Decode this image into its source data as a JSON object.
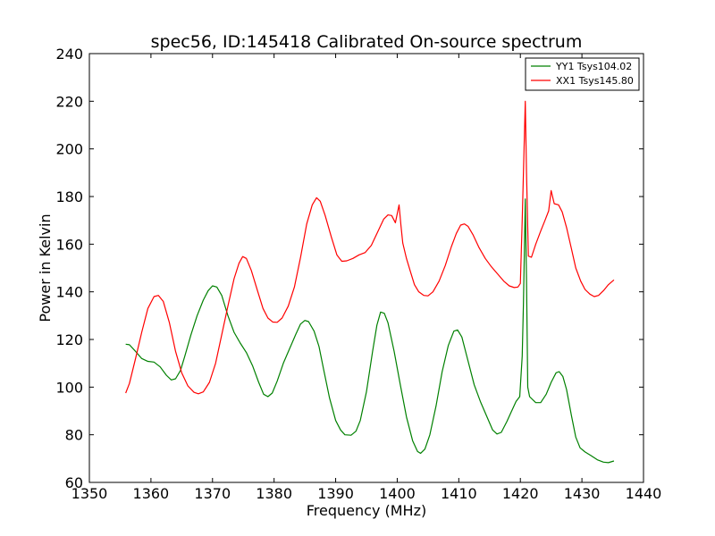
{
  "chart_data": {
    "type": "line",
    "title": "spec56, ID:145418 Calibrated On-source spectrum",
    "xlabel": "Frequency (MHz)",
    "ylabel": "Power in Kelvin",
    "xlim": [
      1350,
      1440
    ],
    "ylim": [
      60,
      240
    ],
    "x_ticks": [
      1350,
      1360,
      1370,
      1380,
      1390,
      1400,
      1410,
      1420,
      1430,
      1440
    ],
    "y_ticks": [
      60,
      80,
      100,
      120,
      140,
      160,
      180,
      200,
      220,
      240
    ],
    "grid": false,
    "legend_position": "top-right",
    "series": [
      {
        "name": "YY1 Tsys104.02",
        "color": "#008000",
        "points": [
          [
            1355.9,
            118
          ],
          [
            1356.5,
            117.8
          ],
          [
            1357.5,
            115
          ],
          [
            1358.5,
            112
          ],
          [
            1359.5,
            110.8
          ],
          [
            1360.5,
            110.5
          ],
          [
            1361.5,
            108.5
          ],
          [
            1362.5,
            105
          ],
          [
            1363.3,
            103
          ],
          [
            1364.0,
            103.5
          ],
          [
            1364.8,
            107
          ],
          [
            1365.5,
            113
          ],
          [
            1366.5,
            122
          ],
          [
            1367.5,
            130
          ],
          [
            1368.5,
            136.5
          ],
          [
            1369.3,
            140.5
          ],
          [
            1370.0,
            142.5
          ],
          [
            1370.7,
            142
          ],
          [
            1371.5,
            138.5
          ],
          [
            1372.5,
            130
          ],
          [
            1373.5,
            123
          ],
          [
            1374.5,
            118.5
          ],
          [
            1375.5,
            114.5
          ],
          [
            1376.5,
            109
          ],
          [
            1377.5,
            102
          ],
          [
            1378.3,
            97
          ],
          [
            1379.0,
            96
          ],
          [
            1379.7,
            97.5
          ],
          [
            1380.5,
            102.5
          ],
          [
            1381.5,
            110
          ],
          [
            1382.5,
            116
          ],
          [
            1383.5,
            122
          ],
          [
            1384.3,
            126.5
          ],
          [
            1385.0,
            128
          ],
          [
            1385.6,
            127.5
          ],
          [
            1386.5,
            123.5
          ],
          [
            1387.3,
            117
          ],
          [
            1388.0,
            108
          ],
          [
            1389.0,
            95.5
          ],
          [
            1390.0,
            86
          ],
          [
            1390.8,
            82
          ],
          [
            1391.5,
            80
          ],
          [
            1392.5,
            79.8
          ],
          [
            1393.3,
            81.5
          ],
          [
            1394.0,
            86
          ],
          [
            1395.0,
            98
          ],
          [
            1396.0,
            115
          ],
          [
            1396.7,
            126
          ],
          [
            1397.3,
            131.5
          ],
          [
            1397.9,
            131
          ],
          [
            1398.5,
            127
          ],
          [
            1399.5,
            115
          ],
          [
            1400.5,
            101
          ],
          [
            1401.5,
            87.5
          ],
          [
            1402.5,
            77.5
          ],
          [
            1403.3,
            73
          ],
          [
            1403.8,
            72.2
          ],
          [
            1404.5,
            74
          ],
          [
            1405.3,
            80
          ],
          [
            1406.3,
            92
          ],
          [
            1407.3,
            106.5
          ],
          [
            1408.3,
            117.5
          ],
          [
            1409.2,
            123.5
          ],
          [
            1409.8,
            124
          ],
          [
            1410.5,
            121
          ],
          [
            1411.5,
            111
          ],
          [
            1412.5,
            101
          ],
          [
            1413.5,
            94
          ],
          [
            1414.5,
            88
          ],
          [
            1415.5,
            82
          ],
          [
            1416.2,
            80.3
          ],
          [
            1416.9,
            81
          ],
          [
            1417.8,
            85.5
          ],
          [
            1418.5,
            89.5
          ],
          [
            1419.3,
            94
          ],
          [
            1419.9,
            96
          ],
          [
            1420.3,
            113
          ],
          [
            1420.5,
            135
          ],
          [
            1420.8,
            179
          ],
          [
            1421.0,
            145
          ],
          [
            1421.2,
            100
          ],
          [
            1421.5,
            96
          ],
          [
            1422.5,
            93.5
          ],
          [
            1423.3,
            93.5
          ],
          [
            1424.2,
            97
          ],
          [
            1425.0,
            102
          ],
          [
            1425.8,
            106
          ],
          [
            1426.3,
            106.5
          ],
          [
            1426.9,
            104.5
          ],
          [
            1427.5,
            99
          ],
          [
            1428.3,
            88
          ],
          [
            1429.0,
            79
          ],
          [
            1429.7,
            74.5
          ],
          [
            1430.5,
            72.8
          ],
          [
            1431.5,
            71.2
          ],
          [
            1432.5,
            69.5
          ],
          [
            1433.5,
            68.5
          ],
          [
            1434.3,
            68.3
          ],
          [
            1435.2,
            69
          ]
        ]
      },
      {
        "name": "XX1 Tsys145.80",
        "color": "#ff0000",
        "points": [
          [
            1355.9,
            97.5
          ],
          [
            1356.5,
            101.5
          ],
          [
            1357.5,
            112
          ],
          [
            1358.5,
            123
          ],
          [
            1359.5,
            133
          ],
          [
            1360.5,
            138
          ],
          [
            1361.2,
            138.5
          ],
          [
            1362.0,
            136
          ],
          [
            1363.0,
            127
          ],
          [
            1364.0,
            115
          ],
          [
            1365.0,
            106
          ],
          [
            1366.0,
            100.5
          ],
          [
            1367.0,
            97.8
          ],
          [
            1367.7,
            97.2
          ],
          [
            1368.5,
            98
          ],
          [
            1369.5,
            102
          ],
          [
            1370.5,
            110
          ],
          [
            1371.5,
            122
          ],
          [
            1372.5,
            134
          ],
          [
            1373.5,
            145.5
          ],
          [
            1374.3,
            152
          ],
          [
            1374.9,
            154.8
          ],
          [
            1375.5,
            154
          ],
          [
            1376.3,
            149
          ],
          [
            1377.3,
            140.5
          ],
          [
            1378.2,
            133
          ],
          [
            1379.0,
            129
          ],
          [
            1379.8,
            127.3
          ],
          [
            1380.5,
            127.2
          ],
          [
            1381.3,
            129
          ],
          [
            1382.3,
            134
          ],
          [
            1383.3,
            142
          ],
          [
            1384.3,
            154.5
          ],
          [
            1385.3,
            168.5
          ],
          [
            1386.2,
            176.5
          ],
          [
            1386.9,
            179.5
          ],
          [
            1387.5,
            178
          ],
          [
            1388.3,
            172
          ],
          [
            1389.3,
            163
          ],
          [
            1390.2,
            155.5
          ],
          [
            1391.0,
            152.8
          ],
          [
            1391.8,
            153
          ],
          [
            1392.8,
            154
          ],
          [
            1393.8,
            155.5
          ],
          [
            1394.8,
            156.5
          ],
          [
            1395.8,
            159.5
          ],
          [
            1396.8,
            165
          ],
          [
            1397.8,
            170.5
          ],
          [
            1398.5,
            172.3
          ],
          [
            1399.1,
            172
          ],
          [
            1399.7,
            169
          ],
          [
            1400.1,
            174
          ],
          [
            1400.3,
            176.5
          ],
          [
            1400.6,
            168
          ],
          [
            1400.9,
            160.5
          ],
          [
            1401.5,
            154
          ],
          [
            1402.2,
            148
          ],
          [
            1402.8,
            143
          ],
          [
            1403.5,
            140
          ],
          [
            1404.3,
            138.5
          ],
          [
            1405.0,
            138.3
          ],
          [
            1405.8,
            140
          ],
          [
            1406.8,
            144.5
          ],
          [
            1407.8,
            151
          ],
          [
            1408.8,
            159
          ],
          [
            1409.6,
            164.5
          ],
          [
            1410.3,
            168
          ],
          [
            1410.9,
            168.5
          ],
          [
            1411.5,
            167.5
          ],
          [
            1412.3,
            164
          ],
          [
            1413.3,
            158.5
          ],
          [
            1414.3,
            154
          ],
          [
            1415.3,
            150.5
          ],
          [
            1416.3,
            147.5
          ],
          [
            1417.3,
            144.5
          ],
          [
            1418.2,
            142.5
          ],
          [
            1419.0,
            141.8
          ],
          [
            1419.6,
            142
          ],
          [
            1420.0,
            143.5
          ],
          [
            1420.3,
            170
          ],
          [
            1420.6,
            200
          ],
          [
            1420.8,
            220
          ],
          [
            1421.0,
            190
          ],
          [
            1421.3,
            155
          ],
          [
            1421.8,
            154.5
          ],
          [
            1422.5,
            160
          ],
          [
            1423.3,
            165.5
          ],
          [
            1424.0,
            170
          ],
          [
            1424.6,
            174
          ],
          [
            1425.0,
            182.5
          ],
          [
            1425.5,
            177
          ],
          [
            1426.2,
            176.5
          ],
          [
            1426.8,
            173.5
          ],
          [
            1427.5,
            167
          ],
          [
            1428.3,
            158
          ],
          [
            1429.0,
            150
          ],
          [
            1429.8,
            144.5
          ],
          [
            1430.5,
            141
          ],
          [
            1431.3,
            139
          ],
          [
            1432.0,
            138
          ],
          [
            1432.7,
            138.5
          ],
          [
            1433.5,
            140.5
          ],
          [
            1434.3,
            143
          ],
          [
            1435.2,
            145
          ]
        ]
      }
    ]
  }
}
